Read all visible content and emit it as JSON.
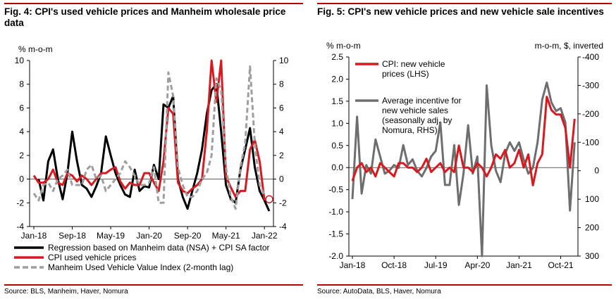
{
  "charts": [
    {
      "title": "Fig. 4: CPI's used vehicle prices and Manheim wholesale price data",
      "source": "Source: BLS, Manheim, Haver, Nomura",
      "ylabel_left": "% m-o-m",
      "chart_data": {
        "type": "line",
        "title": "Fig. 4: CPI's used vehicle prices and Manheim wholesale price data",
        "ylabel": "% m-o-m",
        "ylim": [
          -4,
          10
        ],
        "yticks": [
          -4,
          -2,
          0,
          2,
          4,
          6,
          8,
          10
        ],
        "y2lim": [
          -4,
          10
        ],
        "y2ticks": [
          -4,
          -2,
          0,
          2,
          4,
          6,
          8,
          10
        ],
        "x_tick_labels": [
          "Jan-18",
          "Sep-18",
          "May-19",
          "Jan-20",
          "Sep-20",
          "May-21",
          "Jan-22"
        ],
        "x_start": "Jan-18",
        "n_months": 51,
        "series": [
          {
            "name": "Regression based on Manheim data (NSA) + CPI SA factor",
            "color": "#000000",
            "style": "solid",
            "start_index": 1,
            "values": [
              0.0,
              -1.8,
              1.5,
              2.5,
              0.0,
              -1.7,
              0.5,
              4.0,
              1.5,
              -0.5,
              -0.8,
              -1.5,
              -0.6,
              0.5,
              3.6,
              2.0,
              0.5,
              -0.5,
              -1.3,
              -1.5,
              0.8,
              -1.0,
              -0.6,
              -0.7,
              1.2,
              0.0,
              6.3,
              6.0,
              7.0,
              0.0,
              -1.5,
              -2.5,
              -1.0,
              0.5,
              2.5,
              5.5,
              7.5,
              8.0,
              4.0,
              -0.5,
              -1.7,
              -2.0,
              0.8,
              2.5,
              4.3,
              1.0,
              -1.0,
              -1.8,
              -2.7
            ]
          },
          {
            "name": "CPI used vehicle prices",
            "color": "#d71920",
            "style": "solid",
            "start_index": 0,
            "values": [
              0.3,
              -0.3,
              -0.3,
              0.0,
              0.8,
              -0.3,
              -0.5,
              0.5,
              0.3,
              -0.2,
              0.3,
              0.0,
              -0.5,
              0.0,
              0.5,
              0.5,
              0.8,
              1.0,
              -0.2,
              -0.8,
              -0.3,
              -0.5,
              -0.5,
              0.5,
              0.5,
              -0.3,
              -1.0,
              1.5,
              6.0,
              5.5,
              -0.3,
              -1.0,
              -1.2,
              -0.8,
              -0.5,
              0.0,
              4.0,
              10.0,
              6.5,
              10.0,
              0.2,
              -0.7,
              -1.5,
              -1.0,
              -1.0,
              2.5,
              3.3,
              1.5,
              -1.8
            ]
          },
          {
            "name": "Manheim Used Vehicle Value Index (2-month lag)",
            "color": "#9e9e9e",
            "style": "dashed",
            "start_index": 0,
            "values": [
              -1.2,
              -1.8,
              -0.5,
              -0.3,
              -1.0,
              0.0,
              0.3,
              0.8,
              -0.5,
              -0.5,
              -0.5,
              0.8,
              1.2,
              0.0,
              0.3,
              -1.0,
              -0.5,
              0.0,
              0.5,
              1.5,
              1.0,
              0.3,
              -0.5,
              -0.5,
              -0.3,
              1.0,
              -2.0,
              -2.0,
              9.0,
              7.0,
              1.0,
              -0.5,
              -1.5,
              -1.5,
              -1.0,
              0.0,
              0.5,
              2.0,
              8.5,
              7.5,
              1.0,
              -1.5,
              -2.5,
              1.0,
              3.0,
              9.5,
              3.0,
              -0.5,
              -1.3
            ]
          }
        ],
        "marker": {
          "series": "CPI used vehicle prices",
          "index": 49,
          "value": -1.7,
          "style": "open-circle"
        },
        "legend_position": "bottom"
      }
    },
    {
      "title": "Fig. 5: CPI's new vehicle prices and new vehicle sale incentives",
      "source": "Source: AutoData, BLS, Haver, Nomura",
      "ylabel_left": "% m-o-m",
      "ylabel_right": "m-o-m, $, inverted",
      "chart_data": {
        "type": "line",
        "title": "Fig. 5: CPI's new vehicle prices and new vehicle sale incentives",
        "ylabel": "% m-o-m",
        "y2label": "m-o-m, $, inverted",
        "ylim": [
          -2.0,
          2.5
        ],
        "yticks": [
          "-2.0",
          "-1.5",
          "-1.0",
          "-0.5",
          "0.0",
          "0.5",
          "1.0",
          "1.5",
          "2.0",
          "2.5"
        ],
        "y2lim": [
          300,
          -400
        ],
        "y2ticks": [
          "300",
          "200",
          "100",
          "0",
          "-100",
          "-200",
          "-300",
          "-400"
        ],
        "x_tick_labels": [
          "Jan-18",
          "Oct-18",
          "Jul-19",
          "Apr-20",
          "Jan-21",
          "Oct-21"
        ],
        "x_start": "Jan-18",
        "n_months": 49,
        "series": [
          {
            "name": "CPI: new vehicle prices (LHS)",
            "color": "#d71920",
            "style": "solid",
            "axis": "left",
            "start_index": 0,
            "values": [
              -0.3,
              0.0,
              0.1,
              -0.1,
              0.0,
              -0.2,
              0.1,
              0.0,
              -0.1,
              -0.2,
              0.1,
              0.1,
              0.0,
              0.0,
              -0.1,
              0.0,
              0.2,
              -0.1,
              0.0,
              0.1,
              -0.1,
              0.0,
              -0.1,
              0.5,
              0.0,
              0.0,
              -0.1,
              0.1,
              0.0,
              -0.2,
              0.0,
              0.3,
              0.2,
              0.4,
              0.0,
              0.1,
              0.4,
              0.0,
              0.3,
              -0.4,
              0.1,
              0.3,
              1.6,
              1.3,
              1.2,
              1.2,
              0.9,
              0.0,
              1.1
            ]
          },
          {
            "name": "Average incentive for new vehicle sales (seasonally adj. by Nomura, RHS)",
            "color": "#6e6e6e",
            "style": "solid",
            "axis": "right",
            "start_index": 0,
            "values": [
              100,
              -190,
              80,
              -20,
              10,
              -110,
              -50,
              10,
              0,
              -20,
              -10,
              -90,
              -20,
              -40,
              0,
              20,
              -10,
              -50,
              -70,
              -170,
              50,
              50,
              -90,
              120,
              10,
              -160,
              10,
              -50,
              310,
              -300,
              -90,
              0,
              40,
              -60,
              -100,
              -70,
              -100,
              -40,
              10,
              -10,
              -100,
              -250,
              -310,
              -240,
              -210,
              -220,
              -170,
              140,
              -100
            ]
          }
        ],
        "legend_position": "upper-left"
      }
    }
  ]
}
